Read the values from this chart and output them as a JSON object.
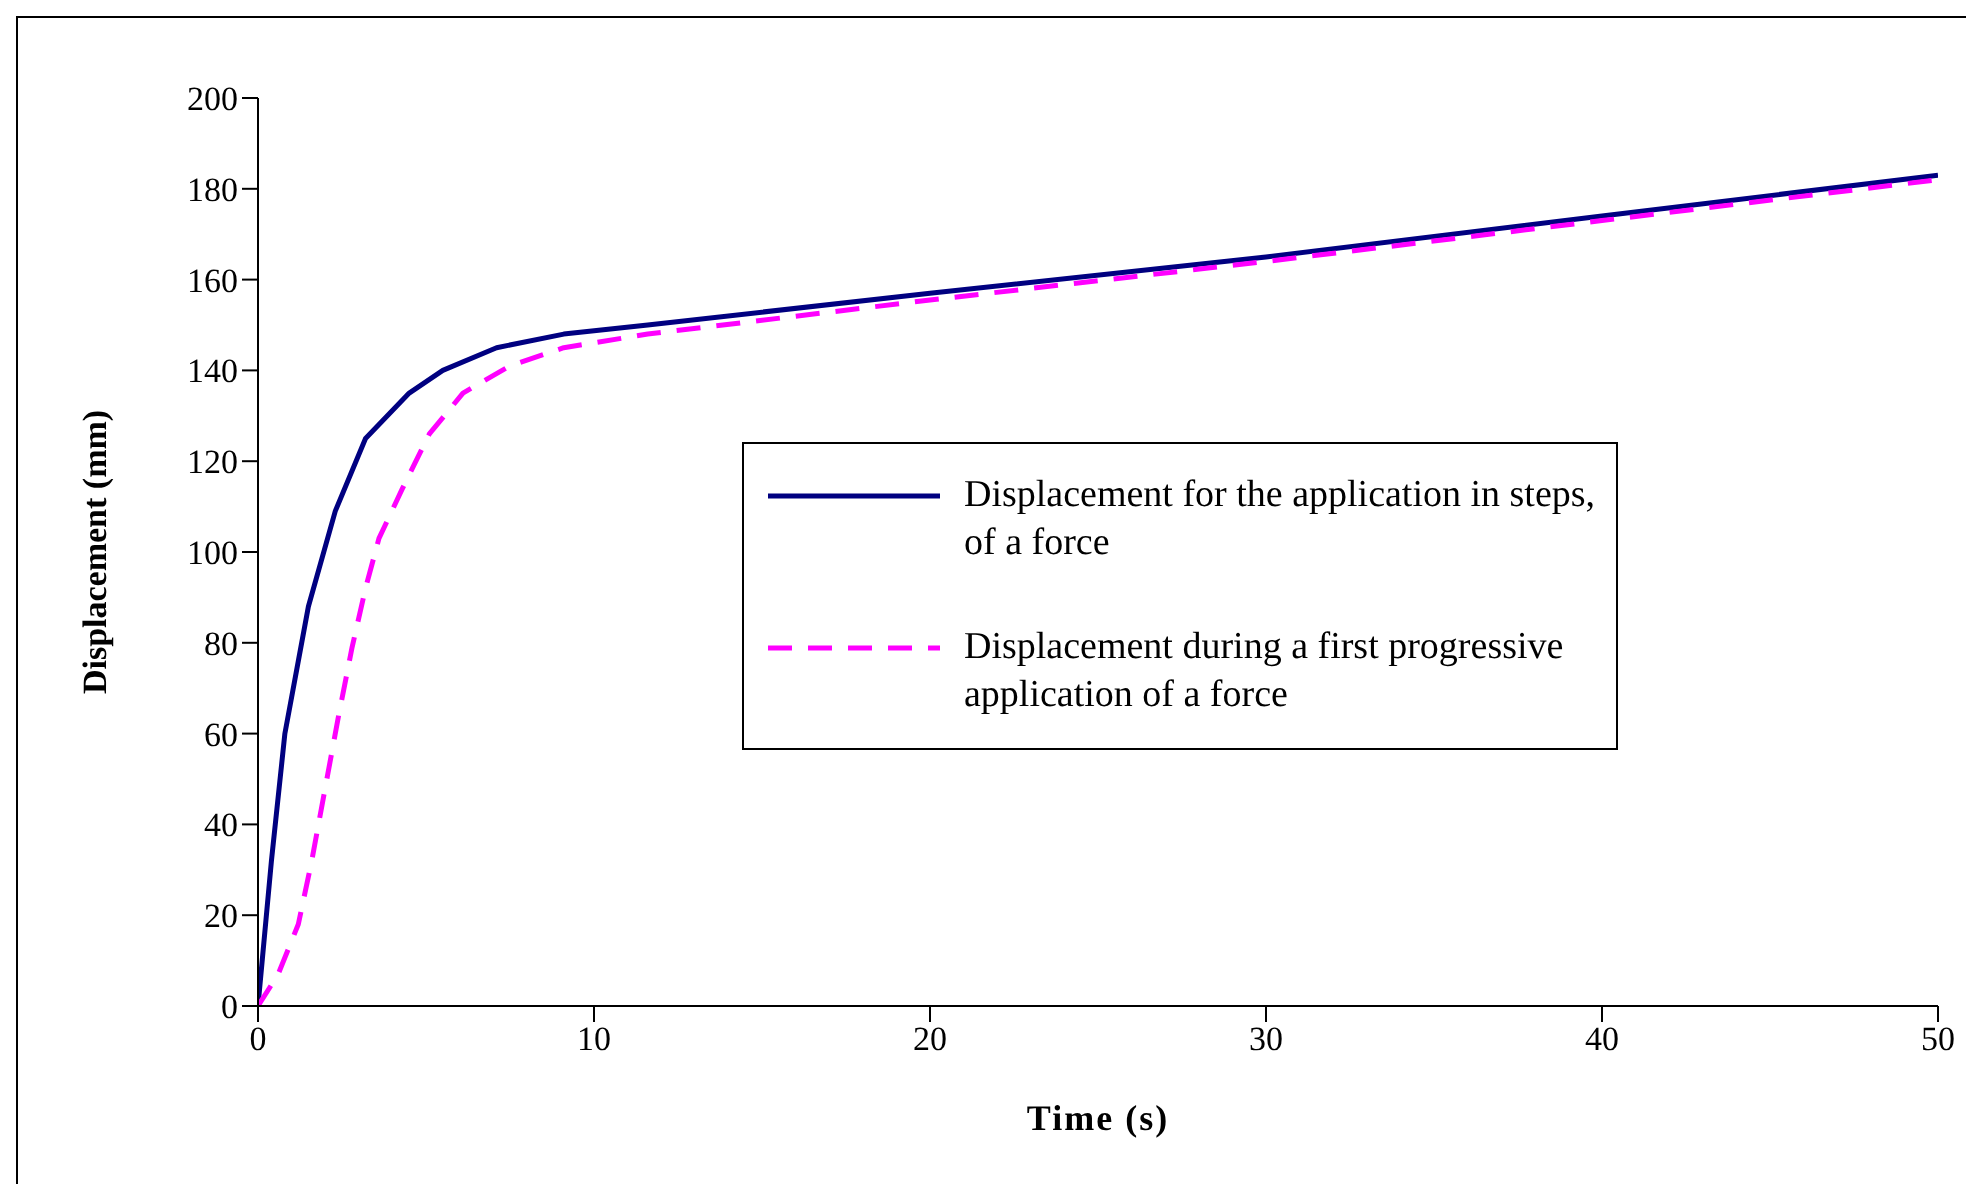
{
  "chart_data": {
    "type": "line",
    "xlabel": "Time (s)",
    "ylabel": "Displacement (mm)",
    "xlim": [
      0,
      50
    ],
    "xticks": [
      0,
      10,
      20,
      30,
      40,
      50
    ],
    "ylim": [
      0,
      200
    ],
    "yticks": [
      0,
      20,
      40,
      60,
      80,
      100,
      120,
      140,
      160,
      180,
      200
    ],
    "grid": false,
    "legend": "right",
    "marker": "none",
    "series": [
      {
        "name": "Displacement for the application in steps, of a force",
        "color": "#000080",
        "line_style": "solid",
        "x": [
          0,
          0.4,
          0.8,
          1.2,
          1.5,
          2.3,
          3.2,
          4.5,
          5.5,
          7.1,
          9.1,
          11.6,
          20,
          30,
          40,
          50
        ],
        "values": [
          0,
          32,
          60,
          76,
          88,
          109,
          125,
          135,
          140,
          145,
          148,
          150,
          157,
          165,
          174,
          183
        ]
      },
      {
        "name": "Displacement during a first progressive application of a force",
        "color": "#ff00ff",
        "line_style": "dashed",
        "x": [
          0,
          0.6,
          1.2,
          1.6,
          2,
          2.4,
          2.8,
          3.2,
          3.6,
          4.3,
          5.1,
          6.1,
          7.5,
          9.1,
          11.6,
          20,
          30,
          40,
          50
        ],
        "values": [
          0,
          7,
          18,
          32,
          48,
          64,
          79,
          92,
          103,
          114,
          126,
          135,
          141,
          145,
          148,
          155.5,
          164,
          173,
          182
        ]
      }
    ]
  }
}
